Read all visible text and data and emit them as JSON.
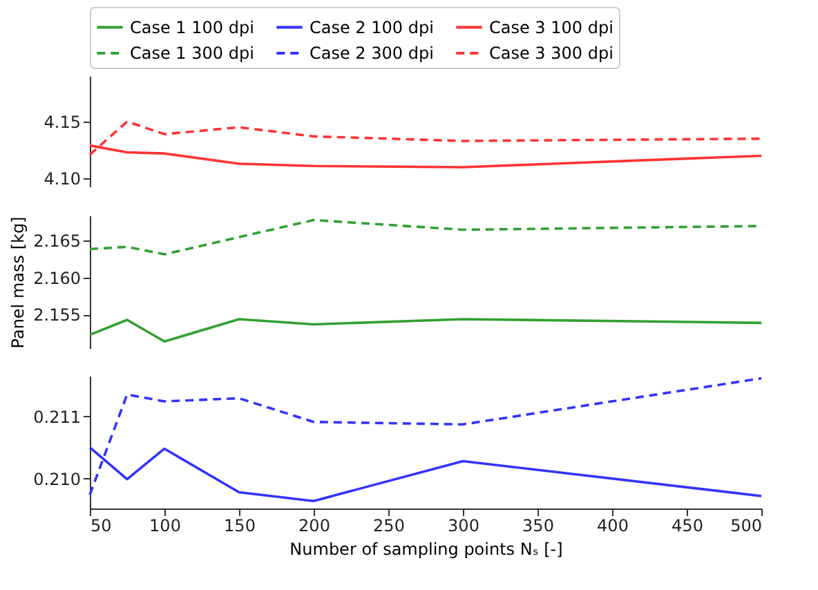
{
  "chart_data": [
    {
      "type": "line",
      "legend": "top",
      "tick_labels": "y",
      "xlim": [
        50,
        500
      ],
      "xticks": [
        50,
        100,
        150,
        200,
        250,
        300,
        350,
        400,
        450,
        500
      ],
      "ylim": [
        4.093,
        4.19
      ],
      "yticks": [
        {
          "value": 4.1,
          "label": "4.10"
        },
        4.15
      ],
      "x": [
        50,
        75,
        100,
        150,
        200,
        300,
        500
      ],
      "series": [
        {
          "name": "Case 3 100 dpi",
          "color": "#ff3333",
          "line_style": "solid",
          "values": [
            4.129,
            4.123,
            4.122,
            4.113,
            4.111,
            4.11,
            4.12
          ]
        },
        {
          "name": "Case 3 300 dpi",
          "color": "#ff3333",
          "line_style": "dashed",
          "values": [
            4.121,
            4.15,
            4.139,
            4.145,
            4.137,
            4.133,
            4.135
          ]
        }
      ]
    },
    {
      "type": "line",
      "legend": "top",
      "tick_labels": "y",
      "ylabel": "Panel mass [kg]",
      "xlim": [
        50,
        500
      ],
      "xticks": [
        50,
        100,
        150,
        200,
        250,
        300,
        350,
        400,
        450,
        500
      ],
      "ylim": [
        2.1505,
        2.1683
      ],
      "yticks": [
        2.155,
        {
          "value": 2.16,
          "label": "2.160"
        },
        2.165
      ],
      "x": [
        50,
        75,
        100,
        150,
        200,
        300,
        500
      ],
      "series": [
        {
          "name": "Case 1 100 dpi",
          "color": "#33a033",
          "line_style": "solid",
          "values": [
            2.1523,
            2.1543,
            2.1514,
            2.1544,
            2.1537,
            2.1544,
            2.1539
          ]
        },
        {
          "name": "Case 1 300 dpi",
          "color": "#33a033",
          "line_style": "dashed",
          "values": [
            2.1638,
            2.1641,
            2.1631,
            2.1654,
            2.1677,
            2.1664,
            2.1669
          ]
        }
      ]
    },
    {
      "type": "line",
      "legend": "top",
      "xlabel": "Number of sampling points Nₛ [-]",
      "xlim": [
        50,
        500
      ],
      "xticks": [
        50,
        100,
        150,
        200,
        250,
        300,
        350,
        400,
        450,
        500
      ],
      "ylim": [
        0.20952,
        0.21165
      ],
      "yticks": [
        {
          "value": 0.21,
          "label": "0.210"
        },
        0.211
      ],
      "x": [
        50,
        75,
        100,
        150,
        200,
        300,
        500
      ],
      "series": [
        {
          "name": "Case 2 100 dpi",
          "color": "#3333ff",
          "line_style": "solid",
          "values": [
            0.2105,
            0.20999,
            0.21048,
            0.20978,
            0.20964,
            0.21028,
            0.20972
          ]
        },
        {
          "name": "Case 2 300 dpi",
          "color": "#3333ff",
          "line_style": "dashed",
          "values": [
            0.20974,
            0.21135,
            0.21124,
            0.21129,
            0.21091,
            0.21087,
            0.21161
          ]
        }
      ]
    }
  ]
}
